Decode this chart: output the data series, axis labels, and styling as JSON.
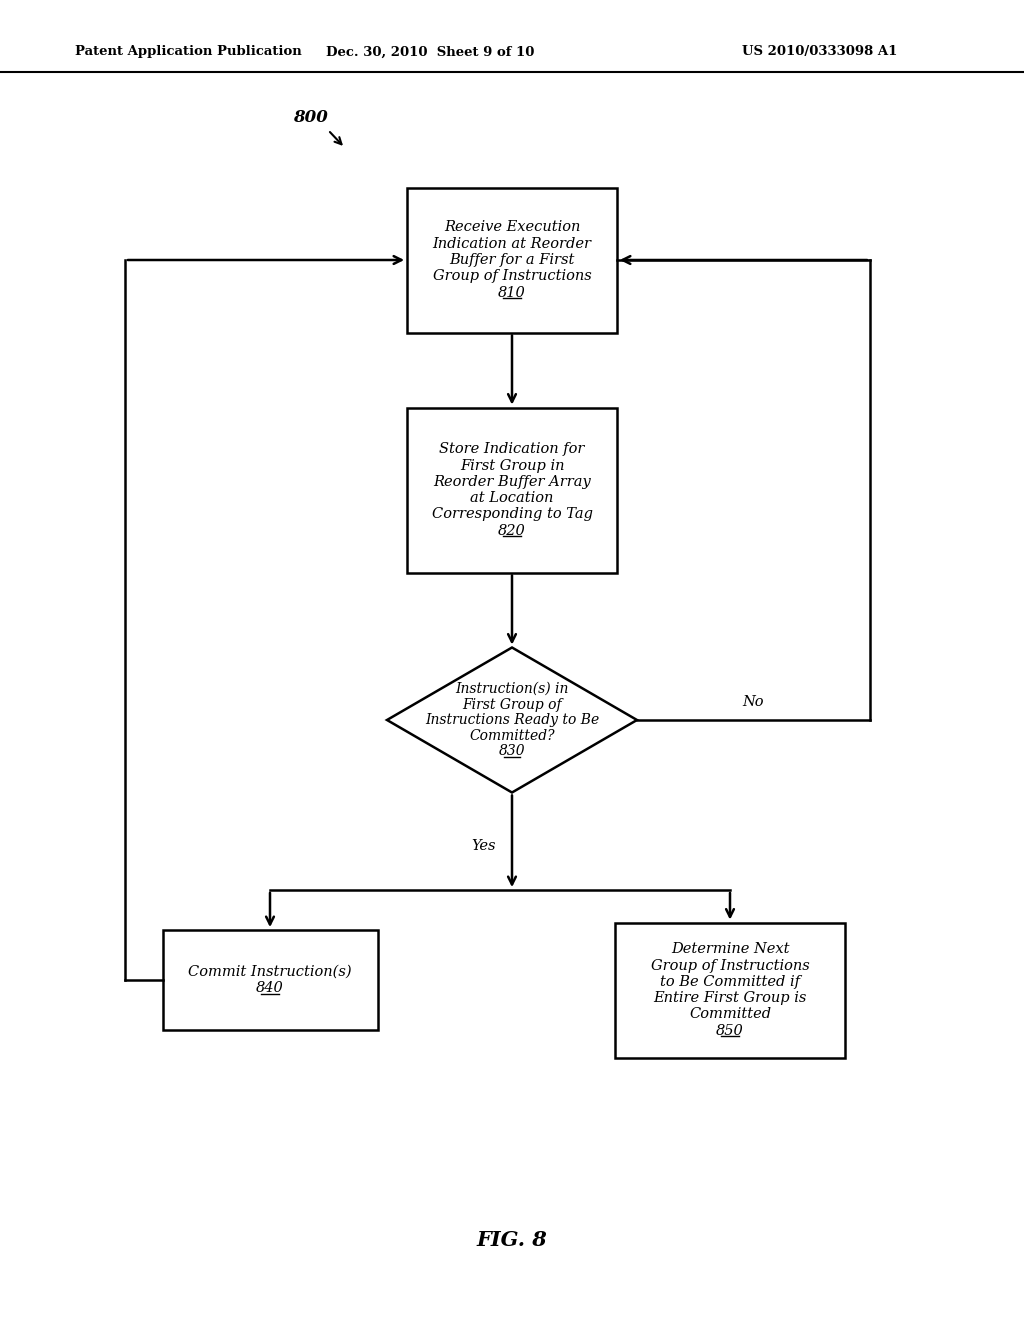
{
  "header_left": "Patent Application Publication",
  "header_center": "Dec. 30, 2010  Sheet 9 of 10",
  "header_right": "US 2010/0333098 A1",
  "fig_label": "FIG. 8",
  "diagram_label": "800",
  "background_color": "#ffffff",
  "box810_lines": [
    "Receive Execution",
    "Indication at Reorder",
    "Buffer for a First",
    "Group of Instructions",
    "810"
  ],
  "box820_lines": [
    "Store Indication for",
    "First Group in",
    "Reorder Buffer Array",
    "at Location",
    "Corresponding to Tag",
    "820"
  ],
  "box830_lines": [
    "Instruction(s) in",
    "First Group of",
    "Instructions Ready to Be",
    "Committed?",
    "830"
  ],
  "box840_lines": [
    "Commit Instruction(s)",
    "840"
  ],
  "box850_lines": [
    "Determine Next",
    "Group of Instructions",
    "to Be Committed if",
    "Entire First Group is",
    "Committed",
    "850"
  ],
  "label_yes": "Yes",
  "label_no": "No"
}
